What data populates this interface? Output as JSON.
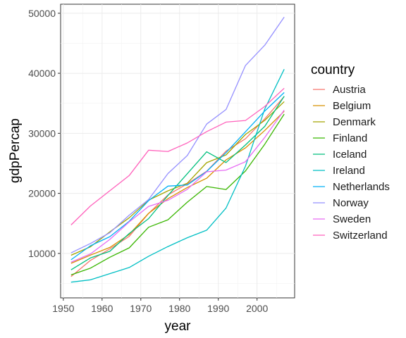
{
  "chart_data": {
    "type": "line",
    "xlabel": "year",
    "ylabel": "gdpPercap",
    "xlim": [
      1949.3,
      2009.7
    ],
    "ylim": [
      2600,
      51500
    ],
    "xticks": [
      1950,
      1960,
      1970,
      1980,
      1990,
      2000
    ],
    "yticks": [
      10000,
      20000,
      30000,
      40000,
      50000
    ],
    "grid": true,
    "legend_title": "country",
    "legend_position": "right",
    "x": [
      1952,
      1957,
      1962,
      1967,
      1972,
      1977,
      1982,
      1987,
      1992,
      1997,
      2002,
      2007
    ],
    "series": [
      {
        "name": "Austria",
        "color": "#F8766D",
        "values": [
          6137,
          8843,
          10751,
          12835,
          16662,
          19749,
          21597,
          23688,
          27042,
          29096,
          32418,
          36126
        ]
      },
      {
        "name": "Belgium",
        "color": "#D89000",
        "values": [
          8343,
          9715,
          10991,
          13149,
          16672,
          19118,
          20980,
          22526,
          25576,
          27561,
          30486,
          33693
        ]
      },
      {
        "name": "Denmark",
        "color": "#A3A500",
        "values": [
          9692,
          11100,
          13583,
          15937,
          18866,
          20423,
          21688,
          25116,
          26407,
          29804,
          32166,
          35278
        ]
      },
      {
        "name": "Finland",
        "color": "#39B600",
        "values": [
          6425,
          7545,
          9372,
          10922,
          14359,
          15605,
          18534,
          21141,
          20647,
          23724,
          28205,
          33207
        ]
      },
      {
        "name": "Iceland",
        "color": "#00BF7D",
        "values": [
          7268,
          9244,
          10350,
          13320,
          15798,
          19655,
          23270,
          26923,
          25144,
          28061,
          31163,
          36181
        ]
      },
      {
        "name": "Ireland",
        "color": "#00BFC4",
        "values": [
          5211,
          5599,
          6632,
          7656,
          9531,
          11151,
          12618,
          13873,
          17559,
          24522,
          34077,
          40676
        ]
      },
      {
        "name": "Netherlands",
        "color": "#00B0F6",
        "values": [
          8942,
          11277,
          12791,
          15363,
          18795,
          21209,
          21400,
          23652,
          26791,
          30246,
          33725,
          36798
        ]
      },
      {
        "name": "Norway",
        "color": "#9590FF",
        "values": [
          10095,
          11654,
          13450,
          16362,
          18965,
          23311,
          26298,
          31541,
          33966,
          41283,
          44684,
          49357
        ]
      },
      {
        "name": "Sweden",
        "color": "#E76BF3",
        "values": [
          8528,
          9912,
          12329,
          15258,
          17832,
          18856,
          20667,
          23587,
          23880,
          25267,
          29342,
          33860
        ]
      },
      {
        "name": "Switzerland",
        "color": "#FF62BC",
        "values": [
          14734,
          17909,
          20431,
          22966,
          27195,
          26982,
          28398,
          30282,
          31872,
          32135,
          34481,
          37506
        ]
      }
    ]
  }
}
